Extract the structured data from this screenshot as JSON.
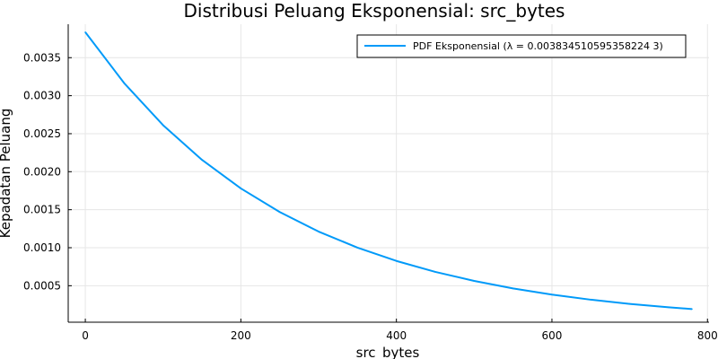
{
  "chart_data": {
    "type": "line",
    "title": "Distribusi Peluang Eksponensial: src_bytes",
    "xlabel": "src_bytes",
    "ylabel": "Kepadatan Peluang",
    "xlim": [
      -22,
      802
    ],
    "ylim": [
      2e-05,
      0.00394
    ],
    "grid": true,
    "legend_position": "top-right",
    "x_ticks": [
      0,
      200,
      400,
      600,
      800
    ],
    "x_tick_labels": [
      "0",
      "200",
      "400",
      "600",
      "800"
    ],
    "y_ticks": [
      0.0005,
      0.001,
      0.0015,
      0.002,
      0.0025,
      0.003,
      0.0035
    ],
    "y_tick_labels": [
      "0.0005",
      "0.0010",
      "0.0015",
      "0.0020",
      "0.0025",
      "0.0030",
      "0.0035"
    ],
    "series": [
      {
        "name": "PDF Eksponensial (λ = 0.003834510595358224 3)",
        "color": "#009af9",
        "x": [
          0,
          50,
          100,
          150,
          200,
          250,
          300,
          350,
          400,
          450,
          500,
          550,
          600,
          650,
          700,
          750,
          780
        ],
        "y": [
          0.003835,
          0.003165,
          0.002612,
          0.002156,
          0.00178,
          0.001469,
          0.001212,
          0.001001,
          0.000826,
          0.000682,
          0.000563,
          0.000464,
          0.000383,
          0.000316,
          0.000261,
          0.000216,
          0.000193
        ]
      }
    ]
  }
}
